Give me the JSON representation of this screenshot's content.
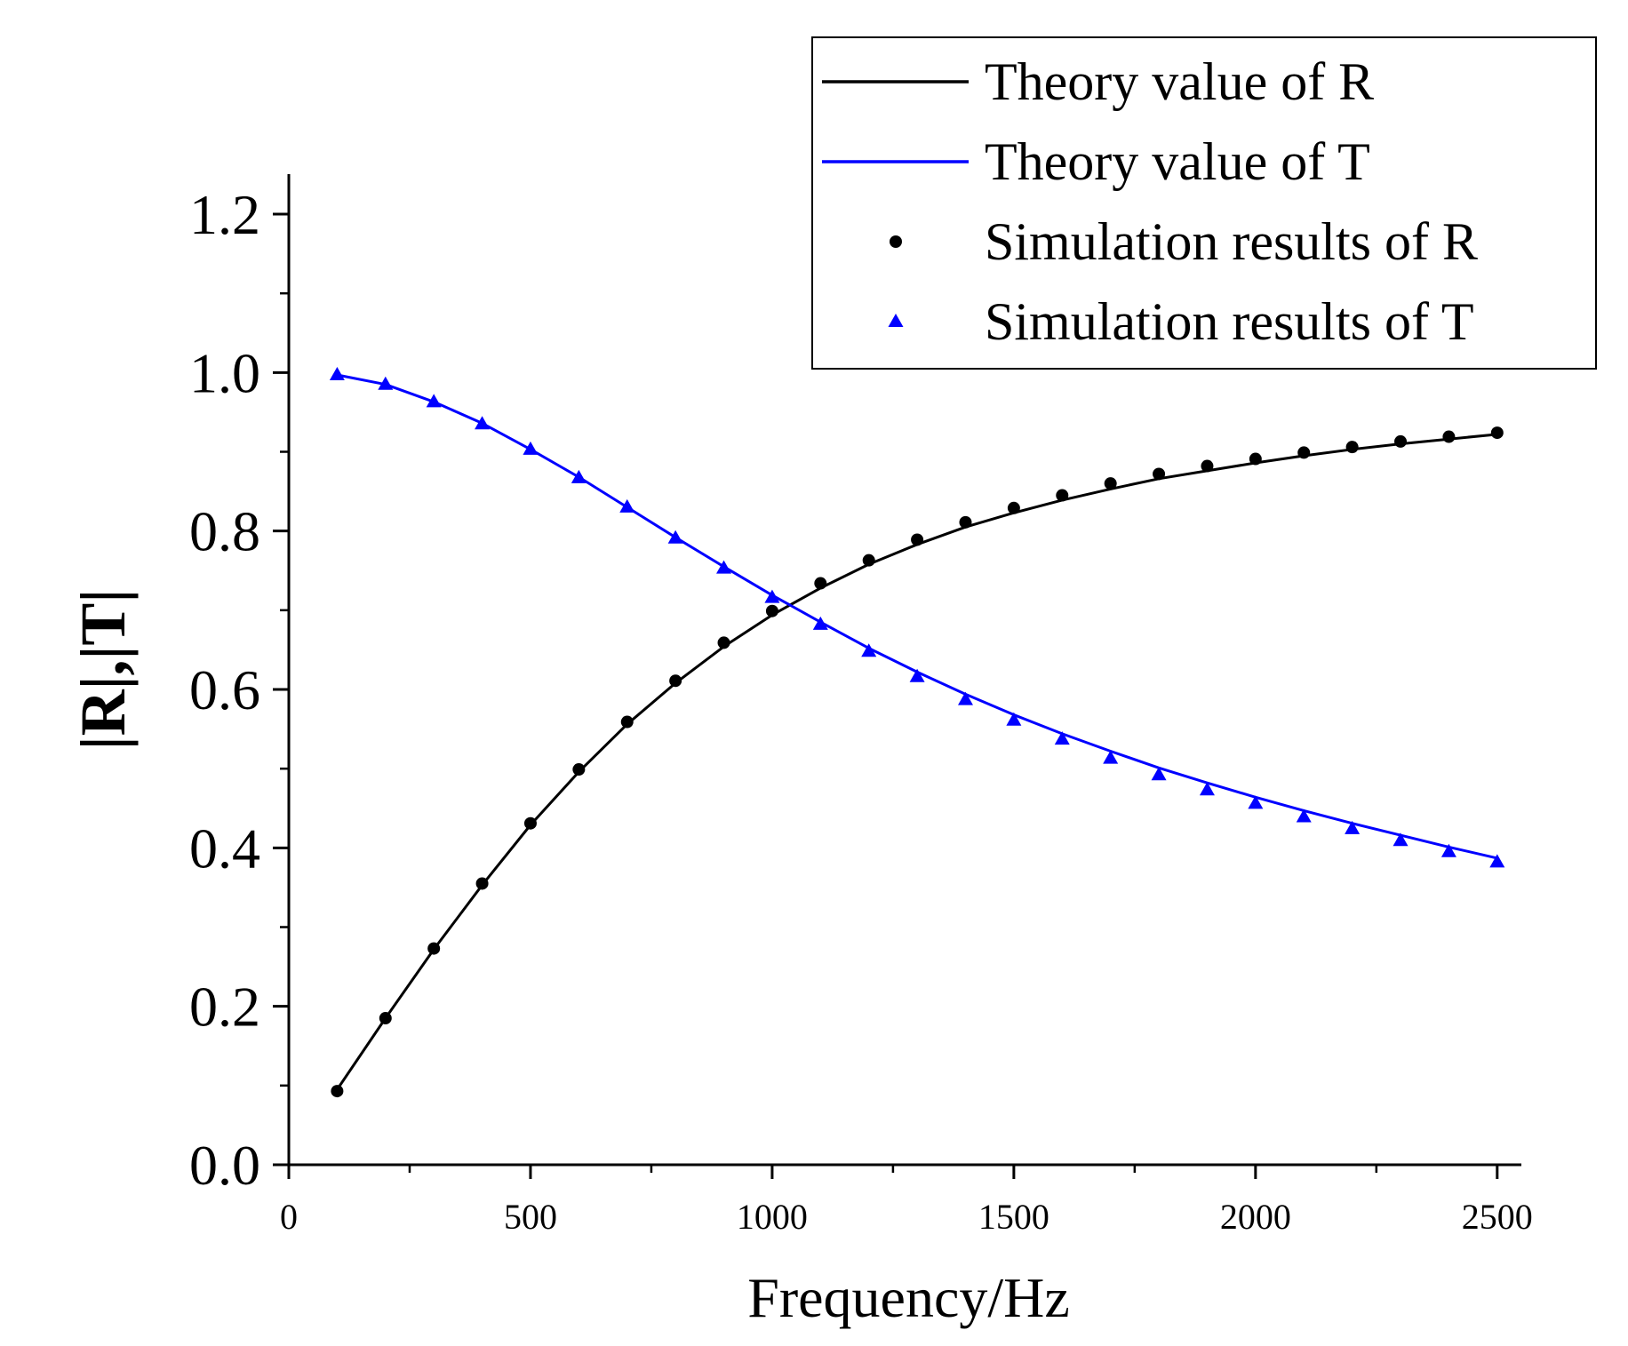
{
  "chart_data": {
    "type": "line",
    "title": "",
    "xlabel": "Frequency/Hz",
    "ylabel": "|R|,|T|",
    "xlim": [
      0,
      2550
    ],
    "ylim": [
      0,
      1.25
    ],
    "x_ticks": [
      0,
      500,
      1000,
      1500,
      2000,
      2500
    ],
    "x_tick_labels": [
      "0",
      "500",
      "1000",
      "1500",
      "2000",
      "2500"
    ],
    "y_ticks": [
      0.0,
      0.2,
      0.4,
      0.6,
      0.8,
      1.0,
      1.2
    ],
    "y_tick_labels": [
      "0.0",
      "0.2",
      "0.4",
      "0.6",
      "0.8",
      "1.0",
      "1.2"
    ],
    "legend_position": "top-right",
    "grid": false,
    "x": [
      100,
      200,
      300,
      400,
      500,
      600,
      700,
      800,
      900,
      1000,
      1100,
      1200,
      1300,
      1400,
      1500,
      1600,
      1700,
      1800,
      1900,
      2000,
      2100,
      2200,
      2300,
      2400,
      2500
    ],
    "series": [
      {
        "name": "Theory value of R",
        "style": "line",
        "color": "#000000",
        "values": [
          0.095,
          0.185,
          0.272,
          0.353,
          0.429,
          0.496,
          0.556,
          0.608,
          0.654,
          0.694,
          0.728,
          0.758,
          0.783,
          0.805,
          0.823,
          0.839,
          0.853,
          0.866,
          0.876,
          0.886,
          0.895,
          0.903,
          0.91,
          0.916,
          0.922
        ]
      },
      {
        "name": "Theory value of T",
        "style": "line",
        "color": "#0000ff",
        "values": [
          0.997,
          0.985,
          0.963,
          0.936,
          0.903,
          0.868,
          0.83,
          0.792,
          0.755,
          0.719,
          0.685,
          0.652,
          0.622,
          0.594,
          0.568,
          0.544,
          0.522,
          0.501,
          0.482,
          0.464,
          0.447,
          0.431,
          0.416,
          0.401,
          0.387
        ]
      },
      {
        "name": "Simulation results of R",
        "style": "circle",
        "color": "#000000",
        "values": [
          0.093,
          0.185,
          0.273,
          0.355,
          0.431,
          0.499,
          0.559,
          0.611,
          0.659,
          0.699,
          0.734,
          0.763,
          0.789,
          0.811,
          0.829,
          0.845,
          0.86,
          0.872,
          0.882,
          0.891,
          0.899,
          0.906,
          0.913,
          0.919,
          0.924
        ]
      },
      {
        "name": "Simulation results of T",
        "style": "triangle",
        "color": "#0000ff",
        "values": [
          0.997,
          0.985,
          0.963,
          0.935,
          0.903,
          0.867,
          0.83,
          0.791,
          0.753,
          0.716,
          0.682,
          0.648,
          0.616,
          0.587,
          0.561,
          0.537,
          0.513,
          0.492,
          0.473,
          0.456,
          0.439,
          0.424,
          0.409,
          0.395,
          0.382
        ]
      }
    ]
  }
}
